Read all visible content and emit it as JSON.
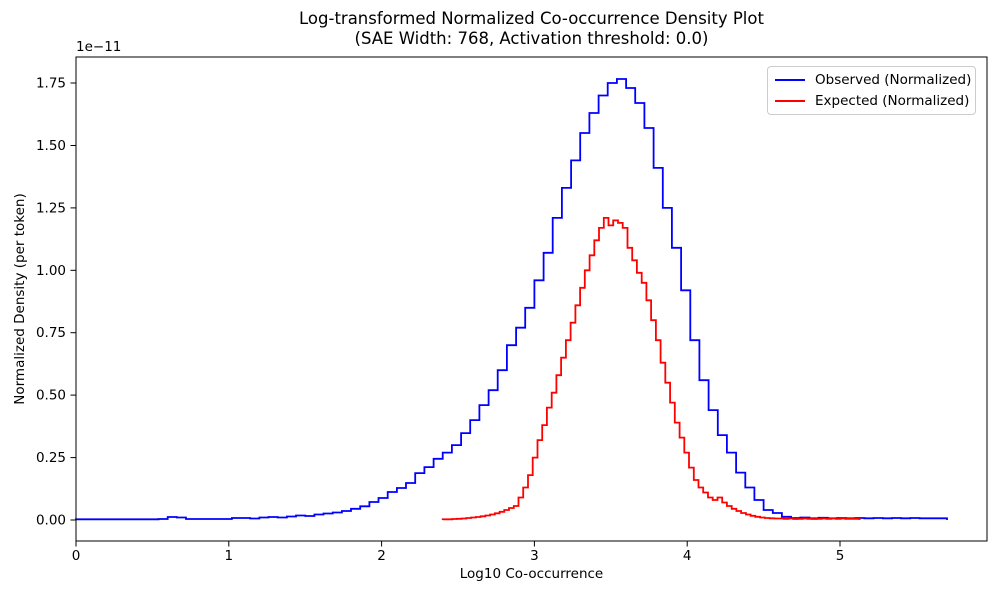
{
  "title": {
    "line1": "Log-transformed Normalized Co-occurrence Density Plot",
    "line2": "(SAE Width: 768, Activation threshold: 0.0)"
  },
  "axes": {
    "xlabel": "Log10 Co-occurrence",
    "ylabel": "Normalized Density (per token)",
    "offset_text": "1e−11",
    "x_ticks": [
      "0",
      "1",
      "2",
      "3",
      "4",
      "5"
    ],
    "y_ticks": [
      "0.00",
      "0.25",
      "0.50",
      "0.75",
      "1.00",
      "1.25",
      "1.50",
      "1.75"
    ]
  },
  "legend": [
    {
      "label": "Observed (Normalized)",
      "color": "#0000ff"
    },
    {
      "label": "Expected (Normalized)",
      "color": "#ff0000"
    }
  ],
  "chart_data": {
    "type": "line",
    "subtype": "step-density-histogram",
    "title": "Log-transformed Normalized Co-occurrence Density Plot (SAE Width: 768, Activation threshold: 0.0)",
    "xlabel": "Log10 Co-occurrence",
    "ylabel": "Normalized Density (per token)",
    "y_scale_factor": "1e-11",
    "xlim": [
      0,
      5.96
    ],
    "ylim_in_1e-11": [
      -0.084,
      1.854
    ],
    "grid": false,
    "legend_position": "upper right",
    "series": [
      {
        "name": "Observed (Normalized)",
        "color": "#0000ff",
        "data_name": "observed-series-line",
        "bin_start": 0.0,
        "bin_width": 0.06,
        "heights_in_1e-11": [
          0.003,
          0.003,
          0.003,
          0.003,
          0.003,
          0.003,
          0.003,
          0.003,
          0.003,
          0.004,
          0.012,
          0.01,
          0.004,
          0.004,
          0.004,
          0.004,
          0.004,
          0.008,
          0.008,
          0.006,
          0.01,
          0.012,
          0.01,
          0.014,
          0.018,
          0.016,
          0.022,
          0.026,
          0.03,
          0.036,
          0.045,
          0.055,
          0.072,
          0.088,
          0.112,
          0.128,
          0.148,
          0.188,
          0.212,
          0.245,
          0.27,
          0.3,
          0.348,
          0.4,
          0.46,
          0.52,
          0.6,
          0.7,
          0.77,
          0.85,
          0.96,
          1.07,
          1.21,
          1.33,
          1.44,
          1.55,
          1.63,
          1.7,
          1.75,
          1.766,
          1.73,
          1.67,
          1.57,
          1.41,
          1.25,
          1.09,
          0.92,
          0.72,
          0.56,
          0.44,
          0.34,
          0.27,
          0.19,
          0.13,
          0.08,
          0.04,
          0.028,
          0.013,
          0.008,
          0.01,
          0.007,
          0.009,
          0.007,
          0.008,
          0.007,
          0.008,
          0.007,
          0.008,
          0.007,
          0.008,
          0.007,
          0.008,
          0.007,
          0.007,
          0.007
        ]
      },
      {
        "name": "Expected (Normalized)",
        "color": "#ff0000",
        "data_name": "expected-series-line",
        "bin_start": 2.4,
        "bin_width": 0.031,
        "heights_in_1e-11": [
          0.003,
          0.003,
          0.004,
          0.005,
          0.006,
          0.008,
          0.01,
          0.012,
          0.015,
          0.018,
          0.022,
          0.027,
          0.033,
          0.04,
          0.048,
          0.056,
          0.09,
          0.13,
          0.18,
          0.25,
          0.32,
          0.38,
          0.45,
          0.51,
          0.58,
          0.65,
          0.72,
          0.79,
          0.86,
          0.93,
          1.0,
          1.06,
          1.12,
          1.17,
          1.21,
          1.18,
          1.2,
          1.19,
          1.17,
          1.09,
          1.04,
          0.99,
          0.95,
          0.88,
          0.8,
          0.72,
          0.63,
          0.55,
          0.47,
          0.39,
          0.33,
          0.27,
          0.21,
          0.16,
          0.13,
          0.11,
          0.09,
          0.08,
          0.09,
          0.07,
          0.056,
          0.045,
          0.036,
          0.028,
          0.022,
          0.017,
          0.013,
          0.01,
          0.008,
          0.007,
          0.006,
          0.006,
          0.005,
          0.006,
          0.004,
          0.005,
          0.006,
          0.005,
          0.004,
          0.005,
          0.006,
          0.005,
          0.006,
          0.005,
          0.006,
          0.005,
          0.005,
          0.005
        ]
      }
    ]
  }
}
